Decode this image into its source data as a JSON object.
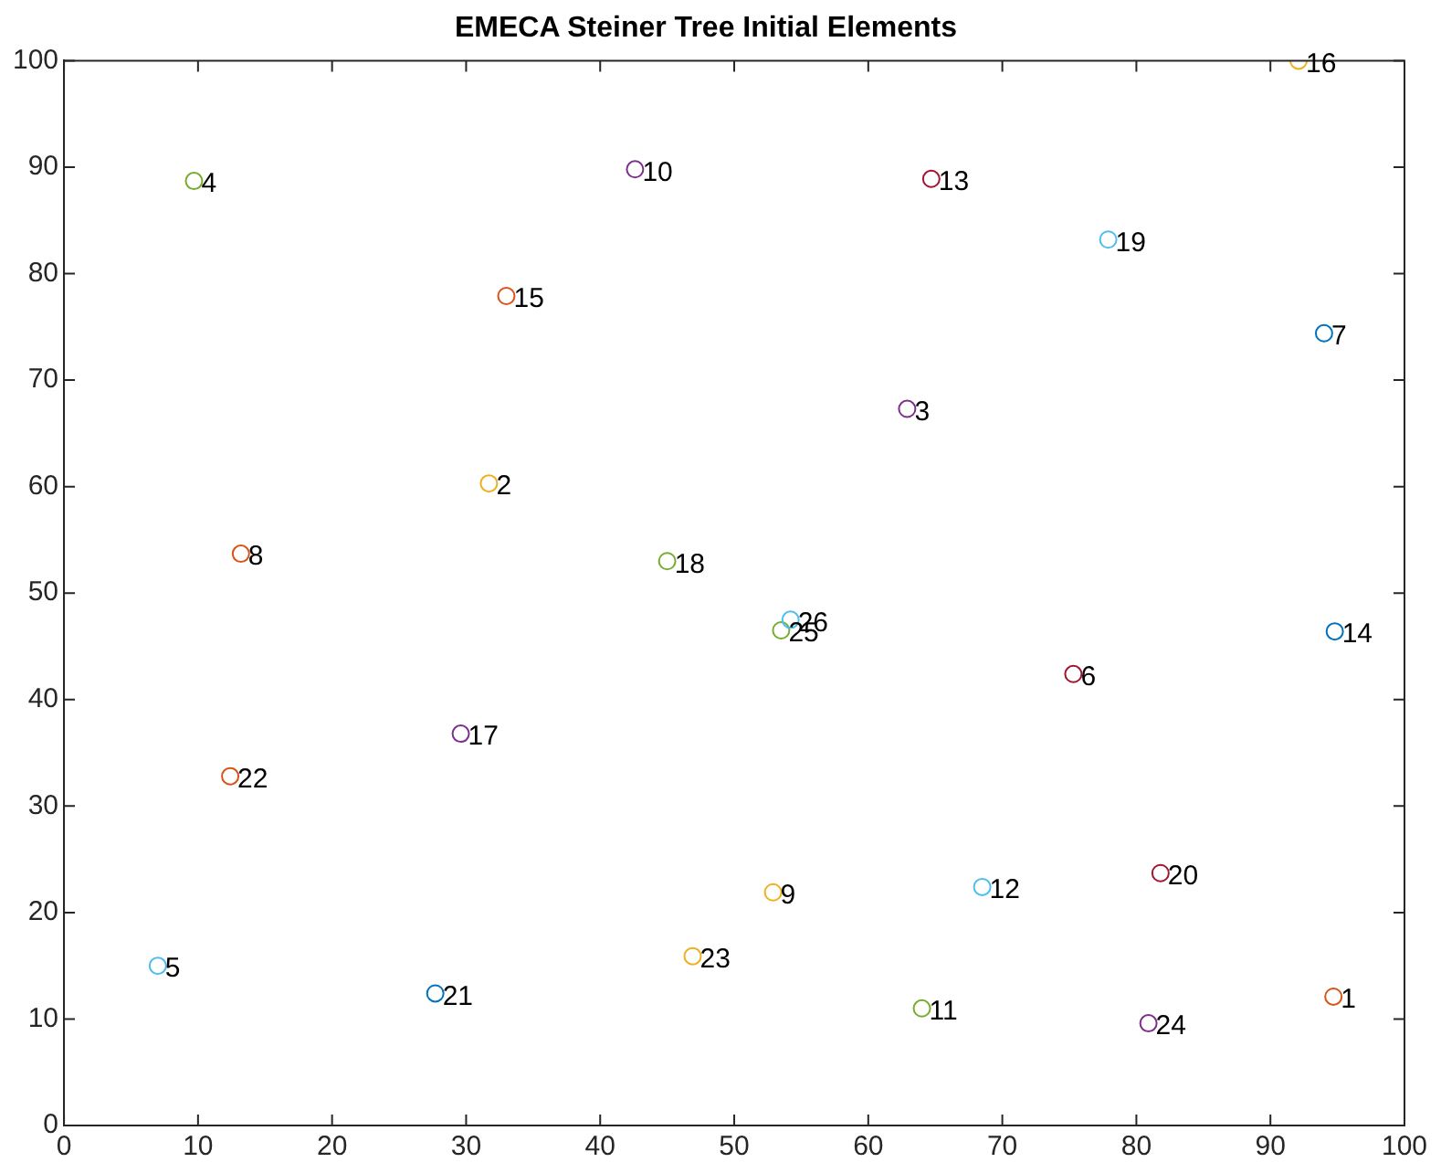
{
  "chart_data": {
    "type": "scatter",
    "title": "EMECA Steiner Tree Initial Elements",
    "series": [
      {
        "x": [
          94.7,
          31.7,
          62.9,
          9.7,
          7.0,
          75.3,
          94.0,
          13.2,
          52.9,
          42.6,
          64.0,
          68.5,
          64.7,
          94.8,
          33.0,
          92.1,
          29.6,
          45.0,
          77.9,
          81.8,
          27.7,
          12.4,
          46.9,
          80.9,
          53.5,
          54.2
        ],
        "values": [
          12.1,
          60.3,
          67.3,
          88.7,
          15.0,
          42.4,
          74.4,
          53.7,
          21.9,
          89.8,
          11.0,
          22.4,
          88.9,
          46.4,
          77.9,
          100,
          36.8,
          53.0,
          83.2,
          23.7,
          12.4,
          32.8,
          15.9,
          9.6,
          46.5,
          47.5
        ],
        "colors": [
          "#d95319",
          "#edb120",
          "#7e2f8e",
          "#77ac30",
          "#4dbeee",
          "#a2142f",
          "#0072bd",
          "#d95319",
          "#edb120",
          "#7e2f8e",
          "#77ac30",
          "#4dbeee",
          "#a2142f",
          "#0072bd",
          "#d95319",
          "#edb120",
          "#7e2f8e",
          "#77ac30",
          "#4dbeee",
          "#a2142f",
          "#0072bd",
          "#d95319",
          "#edb120",
          "#7e2f8e",
          "#77ac30",
          "#4dbeee"
        ]
      }
    ],
    "annotations": [
      {
        "text": "1",
        "x": 94.7,
        "y": 12.1
      },
      {
        "text": "2",
        "x": 31.7,
        "y": 60.3
      },
      {
        "text": "3",
        "x": 62.9,
        "y": 67.3
      },
      {
        "text": "4",
        "x": 9.7,
        "y": 88.7
      },
      {
        "text": "5",
        "x": 7.0,
        "y": 15.0
      },
      {
        "text": "6",
        "x": 75.3,
        "y": 42.4
      },
      {
        "text": "7",
        "x": 94.0,
        "y": 74.4
      },
      {
        "text": "8",
        "x": 13.2,
        "y": 53.7
      },
      {
        "text": "9",
        "x": 52.9,
        "y": 21.9
      },
      {
        "text": "10",
        "x": 42.6,
        "y": 89.8
      },
      {
        "text": "11",
        "x": 64.0,
        "y": 11.0
      },
      {
        "text": "12",
        "x": 68.5,
        "y": 22.4
      },
      {
        "text": "13",
        "x": 64.7,
        "y": 88.9
      },
      {
        "text": "14",
        "x": 94.8,
        "y": 46.4
      },
      {
        "text": "15",
        "x": 33.0,
        "y": 77.9
      },
      {
        "text": "16",
        "x": 92.1,
        "y": 100
      },
      {
        "text": "17",
        "x": 29.6,
        "y": 36.8
      },
      {
        "text": "18",
        "x": 45.0,
        "y": 53.0
      },
      {
        "text": "19",
        "x": 77.9,
        "y": 83.2
      },
      {
        "text": "20",
        "x": 81.8,
        "y": 23.7
      },
      {
        "text": "21",
        "x": 27.7,
        "y": 12.4
      },
      {
        "text": "22",
        "x": 12.4,
        "y": 32.8
      },
      {
        "text": "23",
        "x": 46.9,
        "y": 15.9
      },
      {
        "text": "24",
        "x": 80.9,
        "y": 9.6
      },
      {
        "text": "25",
        "x": 53.5,
        "y": 46.5
      },
      {
        "text": "26",
        "x": 54.2,
        "y": 47.5
      }
    ],
    "xlim": [
      0,
      100
    ],
    "ylim": [
      0,
      100
    ],
    "xticks": [
      0,
      10,
      20,
      30,
      40,
      50,
      60,
      70,
      80,
      90,
      100
    ],
    "yticks": [
      0,
      10,
      20,
      30,
      40,
      50,
      60,
      70,
      80,
      90,
      100
    ],
    "marker": "circle"
  }
}
